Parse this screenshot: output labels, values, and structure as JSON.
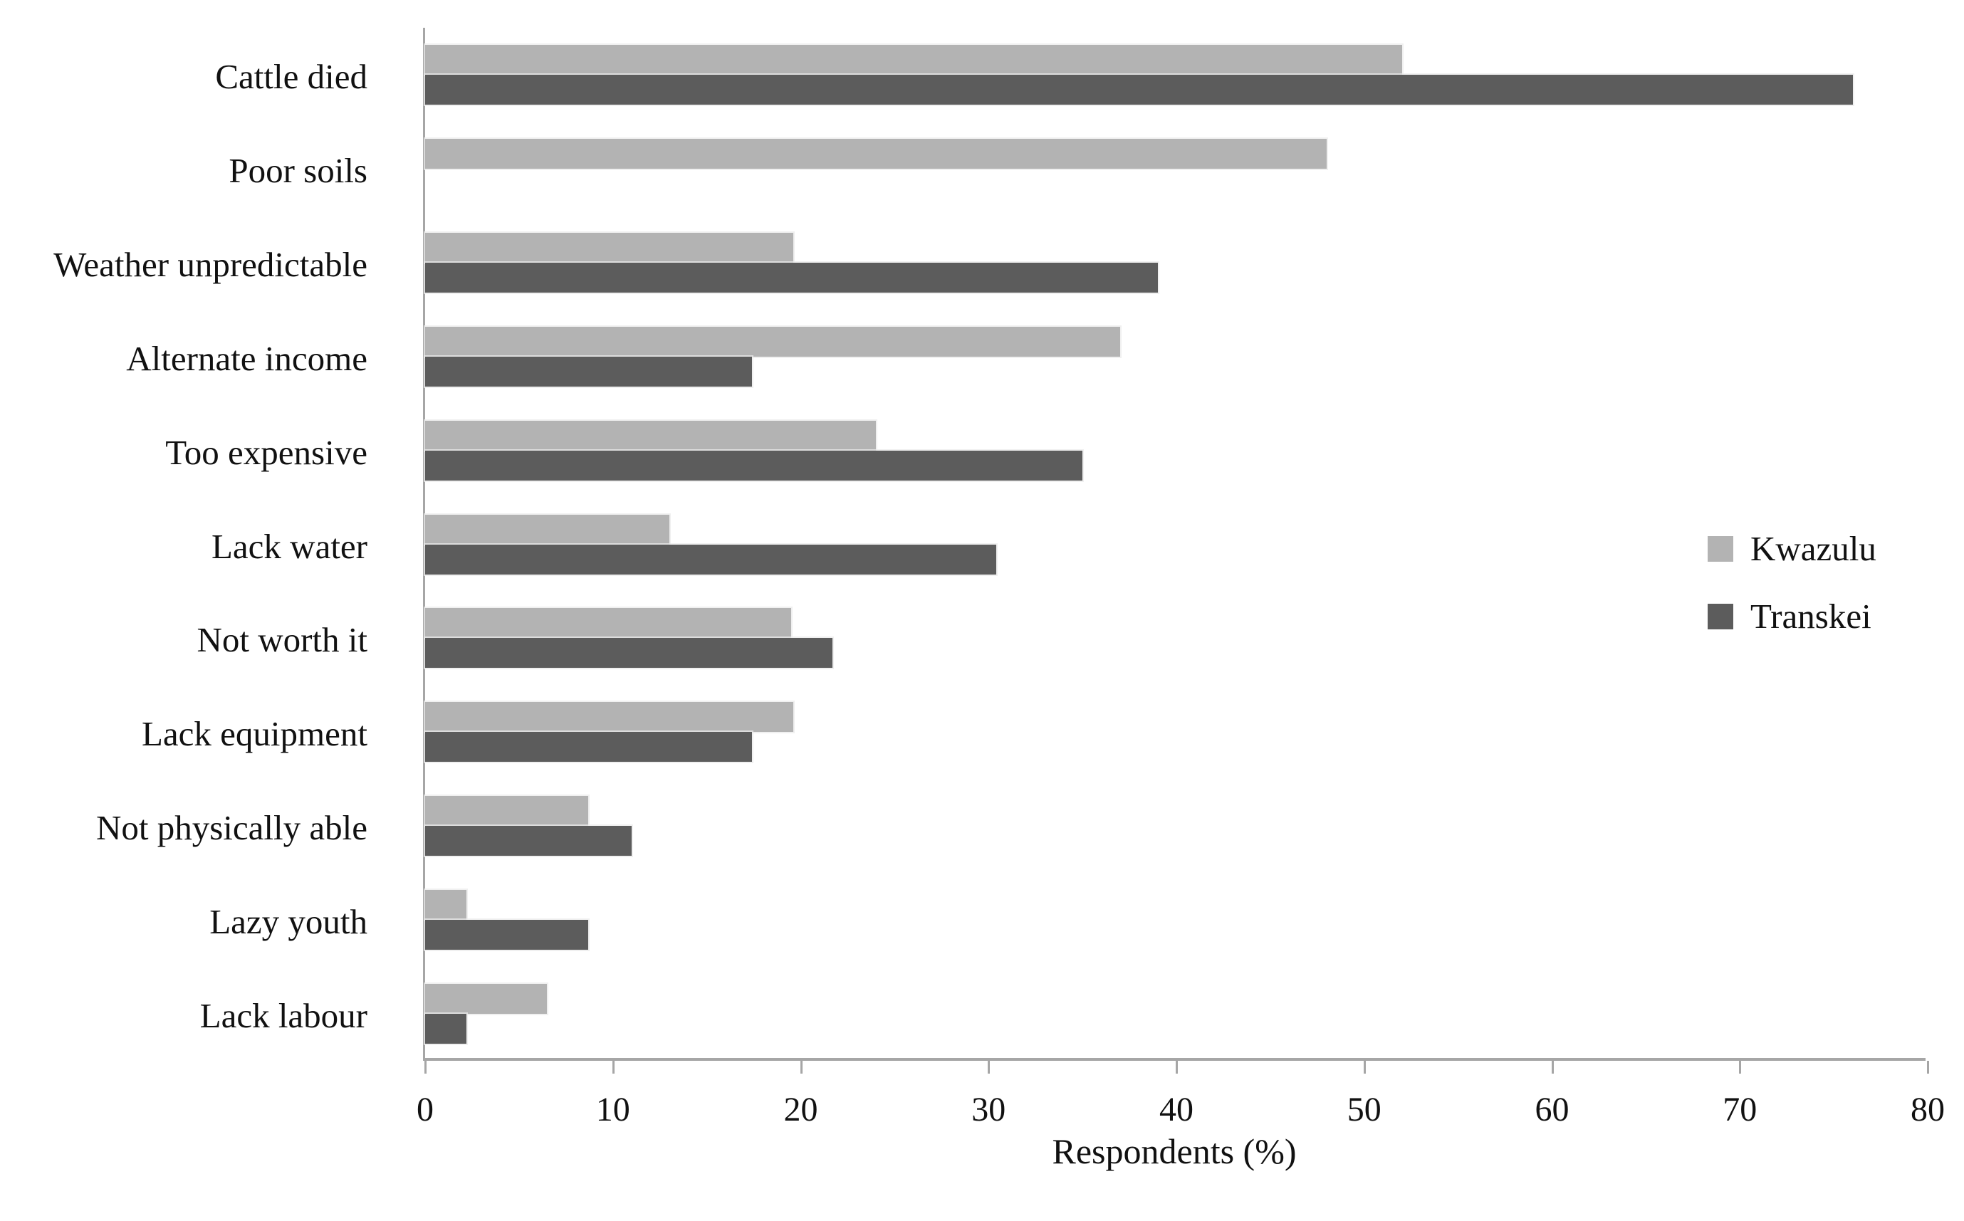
{
  "chart_data": {
    "type": "bar",
    "orientation": "horizontal",
    "title": "",
    "xlabel": "Respondents (%)",
    "ylabel": "",
    "xlim": [
      0,
      80
    ],
    "x_ticks": [
      0,
      10,
      20,
      30,
      40,
      50,
      60,
      70,
      80
    ],
    "grid": false,
    "legend_position": "right",
    "axis_color": "#a6a6a6",
    "text_color": "#111111",
    "categories": [
      "Cattle died",
      "Poor soils",
      "Weather unpredictable",
      "Alternate income",
      "Too expensive",
      "Lack water",
      "Not worth it",
      "Lack equipment",
      "Not physically able",
      "Lazy youth",
      "Lack labour"
    ],
    "series": [
      {
        "name": "Kwazulu",
        "color": "#b3b3b3",
        "values": [
          52,
          48,
          19.6,
          37,
          24,
          13,
          19.5,
          19.6,
          8.7,
          2.2,
          6.5
        ]
      },
      {
        "name": "Transkei",
        "color": "#5c5c5c",
        "values": [
          76,
          0,
          39,
          17.4,
          35,
          30.4,
          21.7,
          17.4,
          11,
          8.7,
          2.2
        ]
      }
    ]
  }
}
